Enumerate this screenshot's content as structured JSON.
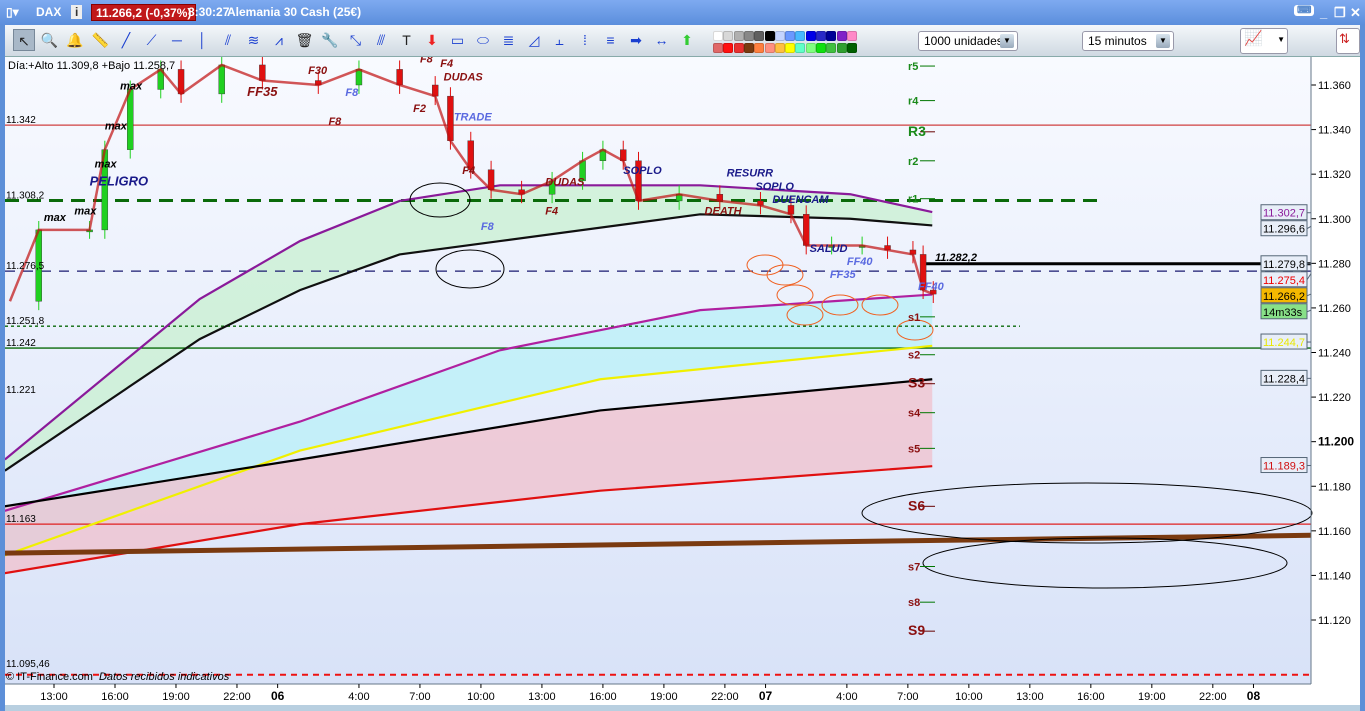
{
  "title": {
    "instrument": "DAX",
    "price": "11.266,2 (-0,37%)",
    "time": "8:30:27",
    "name": "Alemania 30 Cash (25€)"
  },
  "toolbar": {
    "tools": [
      {
        "name": "pointer",
        "glyph": "↖"
      },
      {
        "name": "zoom",
        "glyph": "🔍"
      },
      {
        "name": "alert",
        "glyph": "🔔"
      },
      {
        "name": "ruler",
        "glyph": "📏"
      },
      {
        "name": "trendline",
        "glyph": "╱"
      },
      {
        "name": "segment",
        "glyph": "⟋"
      },
      {
        "name": "horizontal-line",
        "glyph": "─"
      },
      {
        "name": "vertical-line",
        "glyph": "│"
      },
      {
        "name": "fan",
        "glyph": "⫽"
      },
      {
        "name": "regression",
        "glyph": "≋"
      },
      {
        "name": "channel",
        "glyph": "⩘"
      },
      {
        "name": "delete",
        "glyph": "🗑"
      },
      {
        "name": "settings",
        "glyph": "🔧"
      },
      {
        "name": "point",
        "glyph": "⤡"
      },
      {
        "name": "parallel",
        "glyph": "⫻"
      },
      {
        "name": "text",
        "glyph": "T"
      },
      {
        "name": "arrow-down",
        "glyph": "⬇"
      },
      {
        "name": "rectangle",
        "glyph": "▭"
      },
      {
        "name": "ellipse",
        "glyph": "⬭"
      },
      {
        "name": "fibonacci",
        "glyph": "≣"
      },
      {
        "name": "triangle",
        "glyph": "◿"
      },
      {
        "name": "pitchfork",
        "glyph": "⫠"
      },
      {
        "name": "vertical-measure",
        "glyph": "⁞"
      },
      {
        "name": "fib-ext",
        "glyph": "≡"
      },
      {
        "name": "arrow-right",
        "glyph": "➡"
      },
      {
        "name": "range",
        "glyph": "↔"
      },
      {
        "name": "arrow-up",
        "glyph": "⬆"
      }
    ],
    "colors_top": [
      "#ffffff",
      "#d8d8d8",
      "#b0b0b0",
      "#888888",
      "#606060",
      "#000000",
      "#c4d4ff",
      "#6a98ff",
      "#48b8ff",
      "#0000e8",
      "#2828c8",
      "#000098",
      "#8020c8",
      "#ff88c8"
    ],
    "colors_bottom": [
      "#e06868",
      "#ff1010",
      "#e83030",
      "#7a3a10",
      "#ff8040",
      "#ff9080",
      "#ffc040",
      "#ffff00",
      "#60ffc8",
      "#80ff80",
      "#10e010",
      "#40c040",
      "#30a030",
      "#006000"
    ],
    "units": "1000 unidades",
    "period": "15 minutos"
  },
  "chart_data": {
    "type": "candlestick",
    "header": "Día:+Alto 11.309,8 +Bajo 11.258,7",
    "y_ticks": [
      "11.360",
      "11.340",
      "11.320",
      "11.300",
      "11.280",
      "11.260",
      "11.240",
      "11.220",
      "11.200",
      "11.180",
      "11.160",
      "11.140",
      "11.120"
    ],
    "y_tick_values": [
      11360,
      11340,
      11320,
      11300,
      11280,
      11260,
      11240,
      11220,
      11200,
      11180,
      11160,
      11140,
      11120
    ],
    "x_ticks": [
      {
        "t": "05 13:00",
        "l": "13:00"
      },
      {
        "t": "05 16:00",
        "l": "16:00"
      },
      {
        "t": "05 19:00",
        "l": "19:00"
      },
      {
        "t": "05 22:00",
        "l": "22:00"
      },
      {
        "t": "06 00:00",
        "l": "06"
      },
      {
        "t": "06 04:00",
        "l": "4:00"
      },
      {
        "t": "06 07:00",
        "l": "7:00"
      },
      {
        "t": "06 10:00",
        "l": "10:00"
      },
      {
        "t": "06 13:00",
        "l": "13:00"
      },
      {
        "t": "06 16:00",
        "l": "16:00"
      },
      {
        "t": "06 19:00",
        "l": "19:00"
      },
      {
        "t": "06 22:00",
        "l": "22:00"
      },
      {
        "t": "07 00:00",
        "l": "07"
      },
      {
        "t": "07 04:00",
        "l": "4:00"
      },
      {
        "t": "07 07:00",
        "l": "7:00"
      },
      {
        "t": "07 10:00",
        "l": "10:00"
      },
      {
        "t": "07 13:00",
        "l": "13:00"
      },
      {
        "t": "07 16:00",
        "l": "16:00"
      },
      {
        "t": "07 19:00",
        "l": "19:00"
      },
      {
        "t": "07 22:00",
        "l": "22:00"
      },
      {
        "t": "08 00:00",
        "l": "08"
      }
    ],
    "price_path": [
      [
        "05 10:50",
        11263
      ],
      [
        "05 12:15",
        11295
      ],
      [
        "05 14:45",
        11295
      ],
      [
        "05 15:30",
        11331
      ],
      [
        "05 16:45",
        11358
      ],
      [
        "05 18:15",
        11367
      ],
      [
        "05 19:15",
        11356
      ],
      [
        "05 21:15",
        11369
      ],
      [
        "05 23:15",
        11362
      ],
      [
        "06 02:00",
        11360
      ],
      [
        "06 04:00",
        11367
      ],
      [
        "06 06:00",
        11360
      ],
      [
        "06 07:45",
        11355
      ],
      [
        "06 08:30",
        11335
      ],
      [
        "06 09:30",
        11322
      ],
      [
        "06 10:30",
        11313
      ],
      [
        "06 12:00",
        11311
      ],
      [
        "06 13:30",
        11317
      ],
      [
        "06 15:00",
        11326
      ],
      [
        "06 16:00",
        11331
      ],
      [
        "06 17:00",
        11326
      ],
      [
        "06 17:45",
        11308
      ],
      [
        "06 19:45",
        11311
      ],
      [
        "06 21:45",
        11308
      ],
      [
        "06 23:45",
        11306
      ],
      [
        "07 01:15",
        11302
      ],
      [
        "07 02:00",
        11288
      ],
      [
        "07 03:15",
        11288
      ],
      [
        "07 04:45",
        11288
      ],
      [
        "07 06:00",
        11286
      ],
      [
        "07 07:15",
        11284
      ],
      [
        "07 07:45",
        11268
      ],
      [
        "07 08:15",
        11266.2
      ]
    ],
    "bands": [
      {
        "color": "#8a1a9a",
        "pts": [
          [
            "05 10:35",
            11192
          ],
          [
            "05 20:10",
            11264
          ],
          [
            "06 01:06",
            11290
          ],
          [
            "06 06:00",
            11308
          ],
          [
            "06 10:56",
            11315
          ],
          [
            "06 20:47",
            11315
          ],
          [
            "07 04:10",
            11311
          ],
          [
            "07 08:12",
            11303
          ]
        ]
      },
      {
        "color": "#101010",
        "pts": [
          [
            "05 10:35",
            11187
          ],
          [
            "05 20:10",
            11246
          ],
          [
            "06 01:06",
            11268
          ],
          [
            "06 06:00",
            11284
          ],
          [
            "06 10:56",
            11290
          ],
          [
            "06 20:47",
            11302
          ],
          [
            "07 04:10",
            11300
          ],
          [
            "07 08:12",
            11297
          ]
        ]
      },
      {
        "color": "#b020a0",
        "pts": [
          [
            "05 10:35",
            11169
          ],
          [
            "06 01:06",
            11209
          ],
          [
            "06 10:56",
            11241
          ],
          [
            "06 20:47",
            11259
          ],
          [
            "07 08:12",
            11266
          ]
        ]
      },
      {
        "color": "#f0f000",
        "pts": [
          [
            "05 10:35",
            11149
          ],
          [
            "06 01:06",
            11196
          ],
          [
            "06 15:52",
            11228
          ],
          [
            "07 08:12",
            11243
          ]
        ]
      },
      {
        "color": "#000000",
        "pts": [
          [
            "05 10:35",
            11171
          ],
          [
            "06 01:06",
            11192
          ],
          [
            "06 15:52",
            11214
          ],
          [
            "07 08:12",
            11228
          ]
        ]
      },
      {
        "color": "#e01010",
        "pts": [
          [
            "05 10:35",
            11141
          ],
          [
            "06 01:06",
            11163
          ],
          [
            "06 15:52",
            11178
          ],
          [
            "07 08:12",
            11189
          ]
        ]
      },
      {
        "color": "#7a3a10",
        "pts": [
          [
            "05 10:35",
            11150
          ],
          [
            "08 02:50",
            11158
          ]
        ]
      }
    ],
    "levels": [
      {
        "label": "11.342",
        "price": 11342,
        "color": "#d04040",
        "style": "solid"
      },
      {
        "label": "11.308,2",
        "price": 11308.2,
        "color": "#0a6a0a",
        "style": "dash"
      },
      {
        "label": "11.276,5",
        "price": 11276.5,
        "color": "#1a1a70",
        "style": "dash2"
      },
      {
        "label": "11.251,8",
        "price": 11251.8,
        "color": "#0a6a0a",
        "style": "dot"
      },
      {
        "label": "11.242",
        "price": 11242,
        "color": "#0a6a0a",
        "style": "solid"
      },
      {
        "label": "11.221",
        "price": 11221,
        "color": "none",
        "style": "none"
      },
      {
        "label": "11.163",
        "price": 11163,
        "color": "#e02020",
        "style": "solid"
      },
      {
        "label": "11.095,46",
        "price": 11095.46,
        "color": "#ee1111",
        "style": "reddash"
      }
    ],
    "pivots": [
      [
        "r5",
        11368.5
      ],
      [
        "r4",
        11353
      ],
      [
        "R3",
        11339
      ],
      [
        "r2",
        11326
      ],
      [
        "r1",
        11309
      ],
      [
        "s1",
        11256
      ],
      [
        "s2",
        11239
      ],
      [
        "S3",
        11226
      ],
      [
        "s4",
        11213
      ],
      [
        "s5",
        11197
      ],
      [
        "S6",
        11171
      ],
      [
        "s7",
        11144
      ],
      [
        "s8",
        11128
      ],
      [
        "S9",
        11115
      ]
    ],
    "price_tags": [
      {
        "text": "11.302,7",
        "price": 11302.7,
        "fg": "#8a1a9a",
        "bg": "#e8eef8"
      },
      {
        "text": "11.296,6",
        "price": 11296.6,
        "fg": "#000",
        "bg": "#e8eef8"
      },
      {
        "text": "11.279,8",
        "price": 11279.8,
        "fg": "#000",
        "bg": "#e8eef8"
      },
      {
        "text": "11.275,4",
        "price": 11275.4,
        "fg": "#e00",
        "bg": "#e8eef8"
      },
      {
        "text": "11.266,2",
        "price": 11266.2,
        "fg": "#000",
        "bg": "#f4b800"
      },
      {
        "text": "14m33s",
        "price": 11259,
        "fg": "#000",
        "bg": "#88e088"
      },
      {
        "text": "11.244,7",
        "price": 11244.7,
        "fg": "#e8e800",
        "bg": "#e8eef8"
      },
      {
        "text": "11.228,4",
        "price": 11228.4,
        "fg": "#000",
        "bg": "#e8eef8"
      },
      {
        "text": "11.189,3",
        "price": 11189.3,
        "fg": "#d01010",
        "bg": "#e8eef8"
      }
    ],
    "annotations": [
      {
        "text": "PELIGRO",
        "t": "05 14:45",
        "p": 11315,
        "c": "#1a1a8a",
        "b": 1
      },
      {
        "text": "FF35",
        "t": "05 22:30",
        "p": 11355,
        "c": "#8a1010",
        "b": 1
      },
      {
        "text": "F30",
        "t": "06 01:30",
        "p": 11365,
        "c": "#8a1010"
      },
      {
        "text": "F8",
        "t": "06 03:20",
        "p": 11355,
        "c": "#5a6ae0"
      },
      {
        "text": "F8",
        "t": "06 02:30",
        "p": 11342,
        "c": "#8a1010"
      },
      {
        "text": "F8",
        "t": "06 07:00",
        "p": 11370,
        "c": "#8a1010"
      },
      {
        "text": "F4",
        "t": "06 08:00",
        "p": 11368,
        "c": "#8a1010"
      },
      {
        "text": "DUDAS",
        "t": "06 08:10",
        "p": 11362,
        "c": "#8a1010"
      },
      {
        "text": "F2",
        "t": "06 06:40",
        "p": 11348,
        "c": "#8a1010"
      },
      {
        "text": "TRADE",
        "t": "06 08:40",
        "p": 11344,
        "c": "#5a6ae0"
      },
      {
        "text": "F4",
        "t": "06 09:05",
        "p": 11320,
        "c": "#8a1010"
      },
      {
        "text": "DUDAS",
        "t": "06 13:10",
        "p": 11315,
        "c": "#8a1010"
      },
      {
        "text": "F4",
        "t": "06 13:10",
        "p": 11302,
        "c": "#8a1010"
      },
      {
        "text": "F8",
        "t": "06 10:00",
        "p": 11295,
        "c": "#5a6ae0"
      },
      {
        "text": "SOPLO",
        "t": "06 17:00",
        "p": 11320,
        "c": "#1a1a8a"
      },
      {
        "text": "RESURR",
        "t": "06 22:05",
        "p": 11319,
        "c": "#1a1a8a"
      },
      {
        "text": "DEATH",
        "t": "06 21:00",
        "p": 11302,
        "c": "#8a1010"
      },
      {
        "text": "SOPLO",
        "t": "06 23:30",
        "p": 11313,
        "c": "#1a1a8a"
      },
      {
        "text": "DUENCAM",
        "t": "07 00:20",
        "p": 11311,
        "c": "#1a1a8a"
      },
      {
        "text": "SALUD",
        "t": "07 02:10",
        "p": 11285,
        "c": "#1a1a8a"
      },
      {
        "text": "FF40",
        "t": "07 04:00",
        "p": 11290,
        "c": "#5a6ae0"
      },
      {
        "text": "FF35",
        "t": "07 03:10",
        "p": 11275,
        "c": "#5a6ae0"
      },
      {
        "text": "FF40",
        "t": "07 07:30",
        "p": 11268,
        "c": "#5a6ae0"
      },
      {
        "text": "11.282,2",
        "t": "07 08:20",
        "p": 11281,
        "c": "#000"
      },
      {
        "text": "max",
        "t": "05 15:30",
        "p": 11340,
        "c": "#000"
      },
      {
        "text": "max",
        "t": "05 16:15",
        "p": 11358,
        "c": "#000"
      },
      {
        "text": "max",
        "t": "05 15:00",
        "p": 11323,
        "c": "#000"
      },
      {
        "text": "max",
        "t": "05 12:30",
        "p": 11299,
        "c": "#000"
      },
      {
        "text": "max",
        "t": "05 14:00",
        "p": 11302,
        "c": "#000"
      }
    ],
    "footer": "© IT-Finance.com",
    "footer_note": "Datos recibidos indicativos"
  }
}
